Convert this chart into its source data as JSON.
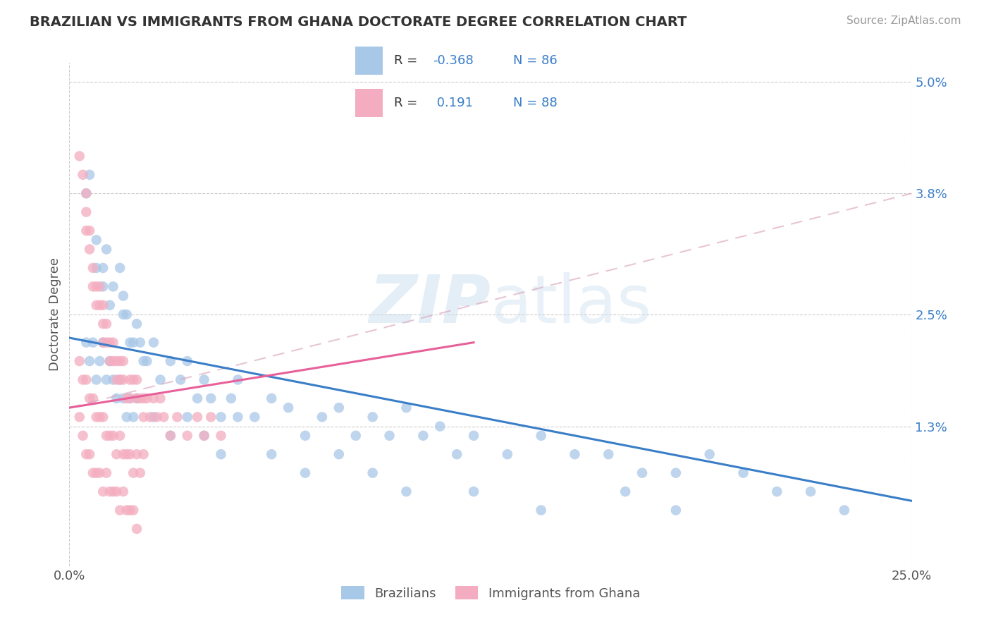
{
  "title": "BRAZILIAN VS IMMIGRANTS FROM GHANA DOCTORATE DEGREE CORRELATION CHART",
  "source": "Source: ZipAtlas.com",
  "ylabel": "Doctorate Degree",
  "xlim": [
    0.0,
    0.25
  ],
  "ylim": [
    -0.002,
    0.052
  ],
  "ymin": 0.0,
  "ymax": 0.05,
  "ytick_vals": [
    0.013,
    0.025,
    0.038,
    0.05
  ],
  "ytick_labels": [
    "1.3%",
    "2.5%",
    "3.8%",
    "5.0%"
  ],
  "xtick_vals": [
    0.0,
    0.25
  ],
  "xtick_labels": [
    "0.0%",
    "25.0%"
  ],
  "r1": -0.368,
  "n1": 86,
  "r2": 0.191,
  "n2": 88,
  "color1": "#a8c8e8",
  "color2": "#f4adc0",
  "line_color1": "#3a7ec8",
  "line_color2": "#e8609a",
  "line_color2_dashed": "#e8b0c8",
  "watermark": "ZIPatlas",
  "background_color": "#ffffff",
  "grid_color": "#cccccc",
  "title_color": "#333333",
  "legend_label1": "Brazilians",
  "legend_label2": "Immigrants from Ghana",
  "blue_line": [
    0.0,
    0.0225,
    0.25,
    0.005
  ],
  "pink_line_solid": [
    0.0,
    0.015,
    0.12,
    0.022
  ],
  "pink_line_dashed": [
    0.0,
    0.015,
    0.25,
    0.038
  ],
  "scatter1_x": [
    0.005,
    0.006,
    0.008,
    0.008,
    0.01,
    0.01,
    0.011,
    0.012,
    0.013,
    0.015,
    0.016,
    0.016,
    0.017,
    0.018,
    0.019,
    0.02,
    0.021,
    0.022,
    0.023,
    0.025,
    0.027,
    0.03,
    0.033,
    0.035,
    0.038,
    0.04,
    0.042,
    0.045,
    0.048,
    0.05,
    0.055,
    0.06,
    0.065,
    0.07,
    0.075,
    0.08,
    0.085,
    0.09,
    0.095,
    0.1,
    0.105,
    0.11,
    0.115,
    0.12,
    0.13,
    0.14,
    0.15,
    0.16,
    0.17,
    0.18,
    0.19,
    0.2,
    0.21,
    0.22,
    0.23,
    0.005,
    0.006,
    0.007,
    0.008,
    0.009,
    0.01,
    0.011,
    0.012,
    0.013,
    0.014,
    0.015,
    0.016,
    0.017,
    0.018,
    0.019,
    0.02,
    0.025,
    0.03,
    0.035,
    0.04,
    0.045,
    0.05,
    0.06,
    0.07,
    0.08,
    0.09,
    0.1,
    0.12,
    0.14,
    0.165,
    0.18
  ],
  "scatter1_y": [
    0.038,
    0.04,
    0.033,
    0.03,
    0.03,
    0.028,
    0.032,
    0.026,
    0.028,
    0.03,
    0.025,
    0.027,
    0.025,
    0.022,
    0.022,
    0.024,
    0.022,
    0.02,
    0.02,
    0.022,
    0.018,
    0.02,
    0.018,
    0.02,
    0.016,
    0.018,
    0.016,
    0.014,
    0.016,
    0.018,
    0.014,
    0.016,
    0.015,
    0.012,
    0.014,
    0.015,
    0.012,
    0.014,
    0.012,
    0.015,
    0.012,
    0.013,
    0.01,
    0.012,
    0.01,
    0.012,
    0.01,
    0.01,
    0.008,
    0.008,
    0.01,
    0.008,
    0.006,
    0.006,
    0.004,
    0.022,
    0.02,
    0.022,
    0.018,
    0.02,
    0.022,
    0.018,
    0.02,
    0.018,
    0.016,
    0.018,
    0.016,
    0.014,
    0.016,
    0.014,
    0.016,
    0.014,
    0.012,
    0.014,
    0.012,
    0.01,
    0.014,
    0.01,
    0.008,
    0.01,
    0.008,
    0.006,
    0.006,
    0.004,
    0.006,
    0.004
  ],
  "scatter2_x": [
    0.003,
    0.004,
    0.005,
    0.005,
    0.005,
    0.006,
    0.006,
    0.007,
    0.007,
    0.008,
    0.008,
    0.009,
    0.009,
    0.01,
    0.01,
    0.01,
    0.011,
    0.011,
    0.012,
    0.012,
    0.013,
    0.013,
    0.014,
    0.014,
    0.015,
    0.015,
    0.016,
    0.016,
    0.017,
    0.018,
    0.018,
    0.019,
    0.02,
    0.02,
    0.021,
    0.022,
    0.022,
    0.023,
    0.024,
    0.025,
    0.026,
    0.027,
    0.028,
    0.03,
    0.032,
    0.035,
    0.038,
    0.04,
    0.042,
    0.045,
    0.003,
    0.004,
    0.005,
    0.006,
    0.007,
    0.008,
    0.009,
    0.01,
    0.011,
    0.012,
    0.013,
    0.014,
    0.015,
    0.016,
    0.017,
    0.018,
    0.019,
    0.02,
    0.021,
    0.022,
    0.003,
    0.004,
    0.005,
    0.006,
    0.007,
    0.008,
    0.009,
    0.01,
    0.011,
    0.012,
    0.013,
    0.014,
    0.015,
    0.016,
    0.017,
    0.018,
    0.019,
    0.02
  ],
  "scatter2_y": [
    0.042,
    0.04,
    0.038,
    0.036,
    0.034,
    0.034,
    0.032,
    0.03,
    0.028,
    0.028,
    0.026,
    0.028,
    0.026,
    0.026,
    0.024,
    0.022,
    0.024,
    0.022,
    0.022,
    0.02,
    0.022,
    0.02,
    0.02,
    0.018,
    0.02,
    0.018,
    0.018,
    0.02,
    0.016,
    0.018,
    0.016,
    0.018,
    0.016,
    0.018,
    0.016,
    0.016,
    0.014,
    0.016,
    0.014,
    0.016,
    0.014,
    0.016,
    0.014,
    0.012,
    0.014,
    0.012,
    0.014,
    0.012,
    0.014,
    0.012,
    0.02,
    0.018,
    0.018,
    0.016,
    0.016,
    0.014,
    0.014,
    0.014,
    0.012,
    0.012,
    0.012,
    0.01,
    0.012,
    0.01,
    0.01,
    0.01,
    0.008,
    0.01,
    0.008,
    0.01,
    0.014,
    0.012,
    0.01,
    0.01,
    0.008,
    0.008,
    0.008,
    0.006,
    0.008,
    0.006,
    0.006,
    0.006,
    0.004,
    0.006,
    0.004,
    0.004,
    0.004,
    0.002
  ]
}
